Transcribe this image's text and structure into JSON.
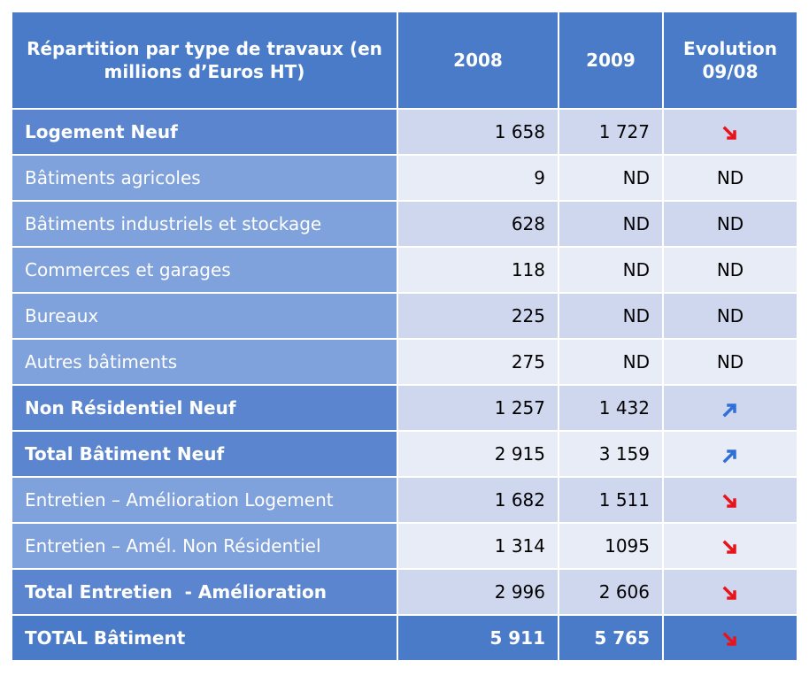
{
  "table": {
    "header": [
      "Répartition par type de travaux (en millions d’Euros HT)",
      "2008",
      "2009",
      "Evolution 09/08"
    ],
    "rows": [
      {
        "label": "Logement Neuf",
        "v2008": "1 658",
        "v2009": "1 727"
      },
      {
        "label": "Bâtiments agricoles",
        "v2008": "9",
        "v2009": "ND",
        "evolution": "ND"
      },
      {
        "label": "Bâtiments industriels et stockage",
        "v2008": "628",
        "v2009": "ND",
        "evolution": "ND"
      },
      {
        "label": "Commerces et garages",
        "v2008": "118",
        "v2009": "ND",
        "evolution": "ND"
      },
      {
        "label": "Bureaux",
        "v2008": "225",
        "v2009": "ND",
        "evolution": "ND"
      },
      {
        "label": "Autres bâtiments",
        "v2008": "275",
        "v2009": "ND",
        "evolution": "ND"
      },
      {
        "label": "Non Résidentiel Neuf",
        "v2008": "1 257",
        "v2009": "1 432"
      },
      {
        "label": "Total Bâtiment Neuf",
        "v2008": "2 915",
        "v2009": "3 159"
      },
      {
        "label": "Entretien – Amélioration Logement",
        "v2008": "1 682",
        "v2009": "1 511"
      },
      {
        "label": "Entretien – Amél. Non Résidentiel",
        "v2008": "1 314",
        "v2009": "1095"
      },
      {
        "label": "Total Entretien  - Amélioration",
        "v2008": "2 996",
        "v2009": "2 606"
      },
      {
        "label": "TOTAL Bâtiment",
        "v2008": "5 911",
        "v2009": "5 765"
      }
    ]
  }
}
